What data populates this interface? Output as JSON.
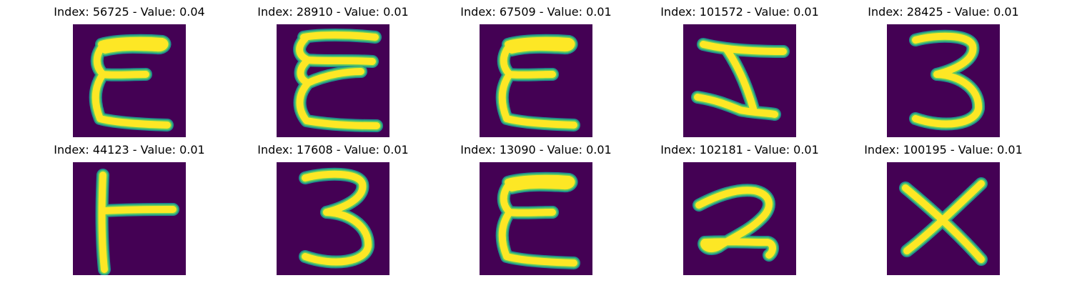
{
  "colors": {
    "background": "#440154",
    "stroke_outer": "#21918c",
    "stroke_mid": "#5ec962",
    "stroke_core": "#fde725"
  },
  "panels": [
    {
      "title": "Index: 56725 - Value: 0.04",
      "glyph": "handwritten-E"
    },
    {
      "title": "Index: 28910 - Value: 0.01",
      "glyph": "handwritten-curly-E"
    },
    {
      "title": "Index: 67509 - Value: 0.01",
      "glyph": "handwritten-E"
    },
    {
      "title": "Index: 101572 - Value: 0.01",
      "glyph": "handwritten-I-Z"
    },
    {
      "title": "Index: 28425 - Value: 0.01",
      "glyph": "handwritten-3"
    },
    {
      "title": "Index: 44123 - Value: 0.01",
      "glyph": "handwritten-sideways-T"
    },
    {
      "title": "Index: 17608 - Value: 0.01",
      "glyph": "handwritten-3"
    },
    {
      "title": "Index: 13090 - Value: 0.01",
      "glyph": "handwritten-E"
    },
    {
      "title": "Index: 102181 - Value: 0.01",
      "glyph": "handwritten-2"
    },
    {
      "title": "Index: 100195 - Value: 0.01",
      "glyph": "handwritten-X"
    }
  ]
}
